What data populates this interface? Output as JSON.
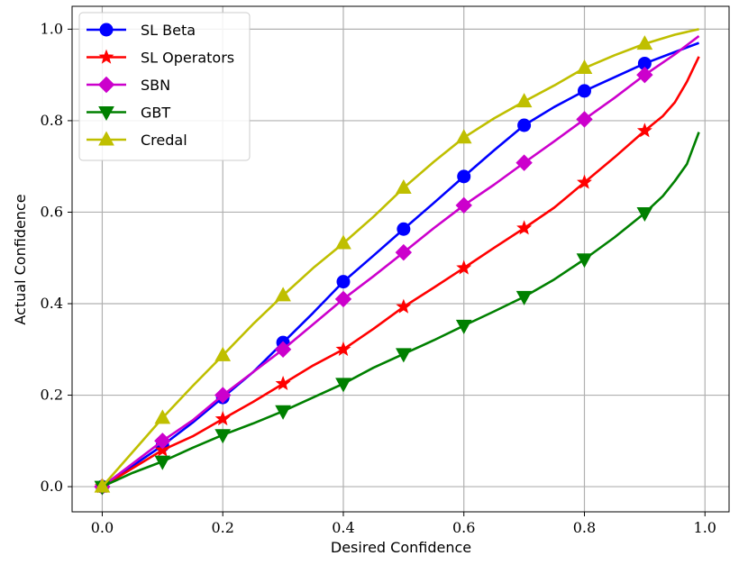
{
  "chart_data": {
    "type": "line",
    "xlabel": "Desired Confidence",
    "ylabel": "Actual Confidence",
    "xlim": [
      -0.05,
      1.04
    ],
    "ylim": [
      -0.055,
      1.05
    ],
    "xticks": [
      0.0,
      0.2,
      0.4,
      0.6,
      0.8,
      1.0
    ],
    "xtick_labels": [
      "0.0",
      "0.2",
      "0.4",
      "0.6",
      "0.8",
      "1.0"
    ],
    "yticks": [
      0.0,
      0.2,
      0.4,
      0.6,
      0.8,
      1.0
    ],
    "ytick_labels": [
      "0.0",
      "0.2",
      "0.4",
      "0.6",
      "0.8",
      "1.0"
    ],
    "grid": true,
    "legend_position": "top-left",
    "series": [
      {
        "name": "SL Beta",
        "color": "#0000ff",
        "marker": "circle",
        "line": [
          [
            0.0,
            0.0
          ],
          [
            0.05,
            0.045
          ],
          [
            0.1,
            0.09
          ],
          [
            0.15,
            0.14
          ],
          [
            0.2,
            0.195
          ],
          [
            0.25,
            0.25
          ],
          [
            0.3,
            0.315
          ],
          [
            0.35,
            0.38
          ],
          [
            0.4,
            0.448
          ],
          [
            0.45,
            0.505
          ],
          [
            0.5,
            0.563
          ],
          [
            0.55,
            0.62
          ],
          [
            0.6,
            0.678
          ],
          [
            0.65,
            0.735
          ],
          [
            0.7,
            0.79
          ],
          [
            0.75,
            0.83
          ],
          [
            0.8,
            0.865
          ],
          [
            0.85,
            0.895
          ],
          [
            0.9,
            0.925
          ],
          [
            0.95,
            0.95
          ],
          [
            0.99,
            0.97
          ]
        ],
        "markers": [
          [
            0.0,
            0.0
          ],
          [
            0.1,
            0.09
          ],
          [
            0.2,
            0.195
          ],
          [
            0.3,
            0.315
          ],
          [
            0.4,
            0.448
          ],
          [
            0.5,
            0.563
          ],
          [
            0.6,
            0.678
          ],
          [
            0.7,
            0.79
          ],
          [
            0.8,
            0.865
          ],
          [
            0.9,
            0.925
          ]
        ]
      },
      {
        "name": "SL Operators",
        "color": "#ff0000",
        "marker": "star",
        "line": [
          [
            0.0,
            0.0
          ],
          [
            0.05,
            0.04
          ],
          [
            0.1,
            0.08
          ],
          [
            0.15,
            0.11
          ],
          [
            0.2,
            0.148
          ],
          [
            0.25,
            0.185
          ],
          [
            0.3,
            0.225
          ],
          [
            0.35,
            0.265
          ],
          [
            0.4,
            0.3
          ],
          [
            0.45,
            0.345
          ],
          [
            0.5,
            0.393
          ],
          [
            0.55,
            0.435
          ],
          [
            0.6,
            0.478
          ],
          [
            0.65,
            0.522
          ],
          [
            0.7,
            0.565
          ],
          [
            0.75,
            0.61
          ],
          [
            0.8,
            0.665
          ],
          [
            0.85,
            0.72
          ],
          [
            0.9,
            0.778
          ],
          [
            0.93,
            0.81
          ],
          [
            0.95,
            0.84
          ],
          [
            0.97,
            0.885
          ],
          [
            0.99,
            0.94
          ]
        ],
        "markers": [
          [
            0.0,
            0.0
          ],
          [
            0.1,
            0.08
          ],
          [
            0.2,
            0.148
          ],
          [
            0.3,
            0.225
          ],
          [
            0.4,
            0.3
          ],
          [
            0.5,
            0.393
          ],
          [
            0.6,
            0.478
          ],
          [
            0.7,
            0.565
          ],
          [
            0.8,
            0.665
          ],
          [
            0.9,
            0.778
          ]
        ]
      },
      {
        "name": "SBN",
        "color": "#cc00cc",
        "marker": "diamond",
        "line": [
          [
            0.0,
            0.0
          ],
          [
            0.05,
            0.05
          ],
          [
            0.1,
            0.1
          ],
          [
            0.15,
            0.145
          ],
          [
            0.2,
            0.2
          ],
          [
            0.25,
            0.25
          ],
          [
            0.3,
            0.3
          ],
          [
            0.35,
            0.355
          ],
          [
            0.4,
            0.41
          ],
          [
            0.45,
            0.46
          ],
          [
            0.5,
            0.512
          ],
          [
            0.55,
            0.565
          ],
          [
            0.6,
            0.615
          ],
          [
            0.65,
            0.66
          ],
          [
            0.7,
            0.708
          ],
          [
            0.75,
            0.755
          ],
          [
            0.8,
            0.803
          ],
          [
            0.85,
            0.85
          ],
          [
            0.9,
            0.9
          ],
          [
            0.95,
            0.945
          ],
          [
            0.99,
            0.985
          ]
        ],
        "markers": [
          [
            0.0,
            0.0
          ],
          [
            0.1,
            0.1
          ],
          [
            0.2,
            0.2
          ],
          [
            0.3,
            0.3
          ],
          [
            0.4,
            0.41
          ],
          [
            0.5,
            0.512
          ],
          [
            0.6,
            0.615
          ],
          [
            0.7,
            0.708
          ],
          [
            0.8,
            0.803
          ],
          [
            0.9,
            0.9
          ]
        ]
      },
      {
        "name": "GBT",
        "color": "#008000",
        "marker": "triangle-down",
        "line": [
          [
            0.0,
            0.0
          ],
          [
            0.05,
            0.03
          ],
          [
            0.1,
            0.055
          ],
          [
            0.15,
            0.085
          ],
          [
            0.2,
            0.113
          ],
          [
            0.25,
            0.138
          ],
          [
            0.3,
            0.165
          ],
          [
            0.35,
            0.195
          ],
          [
            0.4,
            0.225
          ],
          [
            0.45,
            0.26
          ],
          [
            0.5,
            0.29
          ],
          [
            0.55,
            0.32
          ],
          [
            0.6,
            0.352
          ],
          [
            0.65,
            0.383
          ],
          [
            0.7,
            0.415
          ],
          [
            0.75,
            0.453
          ],
          [
            0.8,
            0.497
          ],
          [
            0.85,
            0.545
          ],
          [
            0.9,
            0.598
          ],
          [
            0.93,
            0.635
          ],
          [
            0.95,
            0.668
          ],
          [
            0.97,
            0.705
          ],
          [
            0.99,
            0.775
          ]
        ],
        "markers": [
          [
            0.0,
            0.0
          ],
          [
            0.1,
            0.055
          ],
          [
            0.2,
            0.113
          ],
          [
            0.3,
            0.165
          ],
          [
            0.4,
            0.225
          ],
          [
            0.5,
            0.29
          ],
          [
            0.6,
            0.352
          ],
          [
            0.7,
            0.415
          ],
          [
            0.8,
            0.497
          ],
          [
            0.9,
            0.598
          ]
        ]
      },
      {
        "name": "Credal",
        "color": "#bfbf00",
        "marker": "triangle-up",
        "line": [
          [
            0.0,
            0.0
          ],
          [
            0.05,
            0.075
          ],
          [
            0.1,
            0.15
          ],
          [
            0.15,
            0.22
          ],
          [
            0.2,
            0.287
          ],
          [
            0.25,
            0.355
          ],
          [
            0.3,
            0.418
          ],
          [
            0.35,
            0.478
          ],
          [
            0.4,
            0.532
          ],
          [
            0.45,
            0.59
          ],
          [
            0.5,
            0.653
          ],
          [
            0.55,
            0.71
          ],
          [
            0.6,
            0.763
          ],
          [
            0.65,
            0.805
          ],
          [
            0.7,
            0.842
          ],
          [
            0.75,
            0.877
          ],
          [
            0.8,
            0.915
          ],
          [
            0.85,
            0.943
          ],
          [
            0.9,
            0.968
          ],
          [
            0.95,
            0.988
          ],
          [
            0.99,
            1.0
          ]
        ],
        "markers": [
          [
            0.0,
            0.0
          ],
          [
            0.1,
            0.15
          ],
          [
            0.2,
            0.287
          ],
          [
            0.3,
            0.418
          ],
          [
            0.4,
            0.532
          ],
          [
            0.5,
            0.653
          ],
          [
            0.6,
            0.763
          ],
          [
            0.7,
            0.842
          ],
          [
            0.8,
            0.915
          ],
          [
            0.9,
            0.968
          ]
        ]
      }
    ]
  }
}
